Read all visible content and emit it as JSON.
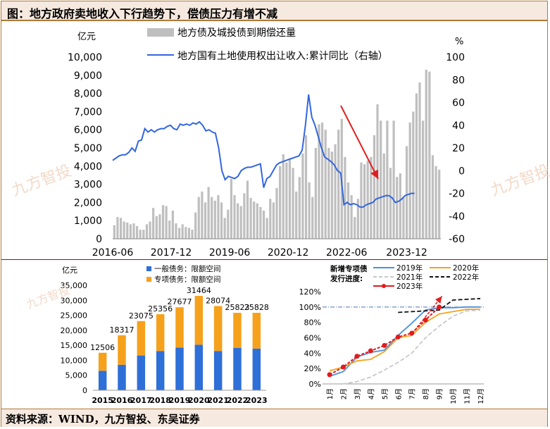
{
  "page": {
    "title": "图：地方政府卖地收入下行趋势下，偿债压力有增不减",
    "source": "资料来源：WIND，九方智投、东吴证券",
    "watermark": "九方智投"
  },
  "chart_data": [
    {
      "type": "bar+line",
      "y_left_unit": "亿元",
      "y_right_unit": "%",
      "ylim_left": [
        0,
        10000
      ],
      "yticks_left": [
        "0",
        "1,000",
        "2,000",
        "3,000",
        "4,000",
        "5,000",
        "6,000",
        "7,000",
        "8,000",
        "9,000",
        "10,000"
      ],
      "ylim_right": [
        -60,
        100
      ],
      "yticks_right": [
        "-60",
        "-40",
        "-20",
        "0",
        "20",
        "40",
        "60",
        "80",
        "100"
      ],
      "xticks": [
        "2016-06",
        "2017-12",
        "2019-06",
        "2020-12",
        "2022-06",
        "2023-12"
      ],
      "months_start": "2016-06",
      "series": [
        {
          "name": "地方债及城投债到期偿还量",
          "kind": "bar",
          "color": "#bfbfbf",
          "values": [
            750,
            1200,
            1150,
            950,
            900,
            800,
            850,
            700,
            500,
            500,
            800,
            950,
            1700,
            1250,
            1350,
            1850,
            1800,
            1000,
            1550,
            850,
            600,
            800,
            650,
            600,
            500,
            1450,
            2300,
            2600,
            2000,
            2850,
            2300,
            2100,
            2400,
            2000,
            1150,
            1600,
            3300,
            2400,
            1950,
            1800,
            2500,
            3200,
            2250,
            2050,
            1950,
            1750,
            1550,
            1150,
            2200,
            2000,
            2800,
            4000,
            4650,
            4200,
            4400,
            3900,
            2600,
            3400,
            4700,
            5700,
            3100,
            2300,
            5000,
            6300,
            6400,
            6000,
            5000,
            4800,
            5200,
            6000,
            6600,
            4500,
            3100,
            2400,
            1200,
            2200,
            4200,
            4100,
            4300,
            4500,
            5700,
            7400,
            6500,
            4700,
            6500,
            3900,
            6500,
            3400,
            3600,
            2300,
            5100,
            6400,
            7000,
            8000,
            8600,
            6500,
            9300,
            9200,
            4600,
            4000,
            3800
          ]
        },
        {
          "name": "地方国有土地使用权出让收入:累计同比（右轴）",
          "kind": "line",
          "axis": "right",
          "color": "#3366dd",
          "values": [
            9,
            11,
            13,
            14,
            14,
            16,
            20,
            17,
            26,
            27,
            37,
            34,
            36,
            34,
            36,
            37,
            37,
            39,
            40,
            37,
            36,
            41,
            40,
            41,
            40,
            42,
            41,
            43,
            40,
            35,
            36,
            34,
            33,
            20,
            0,
            -8,
            -5,
            -6,
            -7,
            -5,
            0,
            2,
            3,
            3,
            4,
            5,
            6,
            -15,
            -7,
            -5,
            0,
            5,
            7,
            8,
            9,
            10,
            11,
            12,
            13,
            18,
            40,
            67,
            47,
            40,
            30,
            20,
            12,
            10,
            8,
            5,
            0,
            -2,
            -30,
            -28,
            -30,
            -29,
            -30,
            -32,
            -32,
            -30,
            -29,
            -28,
            -25,
            -24,
            -23,
            -22,
            -22,
            -24,
            -28,
            -27,
            -25,
            -22,
            -21,
            -20,
            -20
          ]
        }
      ],
      "annotation": "trend-arrow"
    },
    {
      "type": "stacked-bar",
      "y_unit": "亿元",
      "ylim": [
        0,
        35000
      ],
      "yticks": [
        "0",
        "5,000",
        "10,000",
        "15,000",
        "20,000",
        "25,000",
        "30,000",
        "35,000"
      ],
      "categories": [
        "2015",
        "2016",
        "2017",
        "2018",
        "2019",
        "2020",
        "2021",
        "2022",
        "2023"
      ],
      "series": [
        {
          "name": "一般债务：限额空间",
          "color": "#2e6fd8",
          "values": [
            6500,
            8500,
            11600,
            13100,
            14200,
            15200,
            13100,
            14100,
            13900
          ]
        },
        {
          "name": "专项债务：限额空间",
          "color": "#f5a11c",
          "values": [
            6006,
            9817,
            11475,
            12256,
            13477,
            16264,
            14974,
            11723,
            11928
          ]
        }
      ],
      "totals": [
        "12506",
        "18317",
        "23075",
        "25356",
        "27677",
        "31464",
        "28074",
        "25823",
        "25828"
      ]
    },
    {
      "type": "line",
      "ylim": [
        0,
        120
      ],
      "yticks": [
        "0%",
        "20%",
        "40%",
        "60%",
        "80%",
        "100%",
        "120%"
      ],
      "categories": [
        "1月",
        "2月",
        "3月",
        "4月",
        "5月",
        "6月",
        "7月",
        "8月",
        "9月",
        "10月",
        "11月",
        "12月"
      ],
      "legend_title_1": "新增专项债",
      "legend_title_2": "发行进度:",
      "reference_line": 100,
      "series": [
        {
          "name": "2019年",
          "color": "#4a8fe0",
          "style": "solid",
          "values": [
            10,
            16,
            35,
            41,
            44,
            63,
            79,
            96,
            99,
            99,
            100,
            100
          ]
        },
        {
          "name": "2020年",
          "color": "#f5a11c",
          "style": "solid",
          "values": [
            17,
            22,
            30,
            32,
            42,
            60,
            63,
            80,
            91,
            94,
            97,
            97
          ]
        },
        {
          "name": "2021年",
          "color": "#c8c8c8",
          "style": "dashed",
          "values": [
            0,
            0,
            3,
            9,
            18,
            28,
            40,
            60,
            75,
            88,
            95,
            96
          ]
        },
        {
          "name": "2022年",
          "color": "#111111",
          "style": "dashed",
          "values": [
            null,
            null,
            null,
            null,
            null,
            93,
            94,
            95,
            96,
            109,
            110,
            111
          ]
        },
        {
          "name": "2023年",
          "color": "#e31a1c",
          "style": "marker",
          "values": [
            12,
            22,
            36,
            43,
            50,
            61,
            66,
            83,
            100,
            null,
            null,
            null
          ]
        }
      ]
    }
  ]
}
